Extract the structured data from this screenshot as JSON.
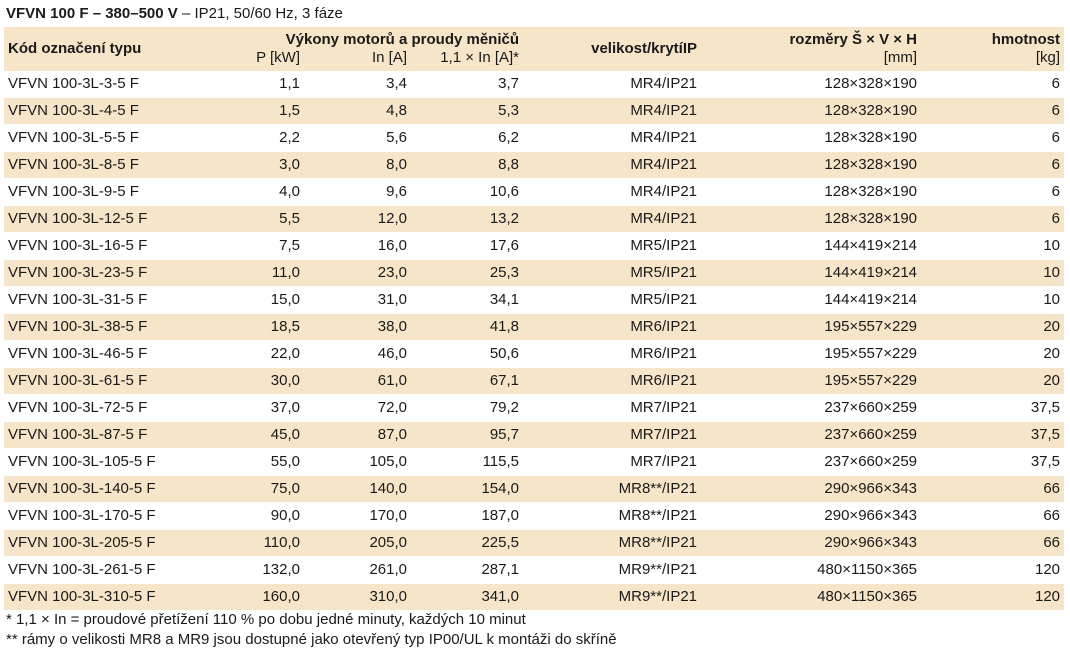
{
  "caption": {
    "bold": "VFVN 100 F – 380–500 V",
    "rest": " – IP21, 50/60 Hz, 3 fáze"
  },
  "header": {
    "code": "Kód označení typu",
    "group": "Výkony motorů a proudy měničů",
    "p": "P [kW]",
    "in": "In [A]",
    "in11": "1,1 × In [A]*",
    "size": "velikost/krytíIP",
    "dim": "rozměry Š × V × H",
    "dim_unit": "[mm]",
    "mass": "hmotnost",
    "mass_unit": "[kg]"
  },
  "rows": [
    {
      "code": "VFVN 100-3L-3-5 F",
      "p": "1,1",
      "in": "3,4",
      "in11": "3,7",
      "size": "MR4/IP21",
      "dim": "128×328×190",
      "mass": "6"
    },
    {
      "code": "VFVN 100-3L-4-5 F",
      "p": "1,5",
      "in": "4,8",
      "in11": "5,3",
      "size": "MR4/IP21",
      "dim": "128×328×190",
      "mass": "6"
    },
    {
      "code": "VFVN 100-3L-5-5 F",
      "p": "2,2",
      "in": "5,6",
      "in11": "6,2",
      "size": "MR4/IP21",
      "dim": "128×328×190",
      "mass": "6"
    },
    {
      "code": "VFVN 100-3L-8-5 F",
      "p": "3,0",
      "in": "8,0",
      "in11": "8,8",
      "size": "MR4/IP21",
      "dim": "128×328×190",
      "mass": "6"
    },
    {
      "code": "VFVN 100-3L-9-5 F",
      "p": "4,0",
      "in": "9,6",
      "in11": "10,6",
      "size": "MR4/IP21",
      "dim": "128×328×190",
      "mass": "6"
    },
    {
      "code": "VFVN 100-3L-12-5 F",
      "p": "5,5",
      "in": "12,0",
      "in11": "13,2",
      "size": "MR4/IP21",
      "dim": "128×328×190",
      "mass": "6"
    },
    {
      "code": "VFVN 100-3L-16-5 F",
      "p": "7,5",
      "in": "16,0",
      "in11": "17,6",
      "size": "MR5/IP21",
      "dim": "144×419×214",
      "mass": "10"
    },
    {
      "code": "VFVN 100-3L-23-5 F",
      "p": "11,0",
      "in": "23,0",
      "in11": "25,3",
      "size": "MR5/IP21",
      "dim": "144×419×214",
      "mass": "10"
    },
    {
      "code": "VFVN 100-3L-31-5 F",
      "p": "15,0",
      "in": "31,0",
      "in11": "34,1",
      "size": "MR5/IP21",
      "dim": "144×419×214",
      "mass": "10"
    },
    {
      "code": "VFVN 100-3L-38-5 F",
      "p": "18,5",
      "in": "38,0",
      "in11": "41,8",
      "size": "MR6/IP21",
      "dim": "195×557×229",
      "mass": "20"
    },
    {
      "code": "VFVN 100-3L-46-5 F",
      "p": "22,0",
      "in": "46,0",
      "in11": "50,6",
      "size": "MR6/IP21",
      "dim": "195×557×229",
      "mass": "20"
    },
    {
      "code": "VFVN 100-3L-61-5 F",
      "p": "30,0",
      "in": "61,0",
      "in11": "67,1",
      "size": "MR6/IP21",
      "dim": "195×557×229",
      "mass": "20"
    },
    {
      "code": "VFVN 100-3L-72-5 F",
      "p": "37,0",
      "in": "72,0",
      "in11": "79,2",
      "size": "MR7/IP21",
      "dim": "237×660×259",
      "mass": "37,5"
    },
    {
      "code": "VFVN 100-3L-87-5 F",
      "p": "45,0",
      "in": "87,0",
      "in11": "95,7",
      "size": "MR7/IP21",
      "dim": "237×660×259",
      "mass": "37,5"
    },
    {
      "code": "VFVN 100-3L-105-5 F",
      "p": "55,0",
      "in": "105,0",
      "in11": "115,5",
      "size": "MR7/IP21",
      "dim": "237×660×259",
      "mass": "37,5"
    },
    {
      "code": "VFVN 100-3L-140-5 F",
      "p": "75,0",
      "in": "140,0",
      "in11": "154,0",
      "size": "MR8**/IP21",
      "dim": "290×966×343",
      "mass": "66"
    },
    {
      "code": "VFVN 100-3L-170-5 F",
      "p": "90,0",
      "in": "170,0",
      "in11": "187,0",
      "size": "MR8**/IP21",
      "dim": "290×966×343",
      "mass": "66"
    },
    {
      "code": "VFVN 100-3L-205-5 F",
      "p": "110,0",
      "in": "205,0",
      "in11": "225,5",
      "size": "MR8**/IP21",
      "dim": "290×966×343",
      "mass": "66"
    },
    {
      "code": "VFVN 100-3L-261-5 F",
      "p": "132,0",
      "in": "261,0",
      "in11": "287,1",
      "size": "MR9**/IP21",
      "dim": "480×1150×365",
      "mass": "120"
    },
    {
      "code": "VFVN 100-3L-310-5 F",
      "p": "160,0",
      "in": "310,0",
      "in11": "341,0",
      "size": "MR9**/IP21",
      "dim": "480×1150×365",
      "mass": "120"
    }
  ],
  "footnotes": [
    "* 1,1 × In = proudové přetížení 110 % po dobu jedné minuty, každých 10 minut",
    "** rámy o velikosti MR8 a MR9 jsou dostupné jako otevřený typ IP00/UL k montáži do skříně"
  ],
  "colors": {
    "stripe": "#f6e5c8",
    "text": "#1a1a1a"
  }
}
